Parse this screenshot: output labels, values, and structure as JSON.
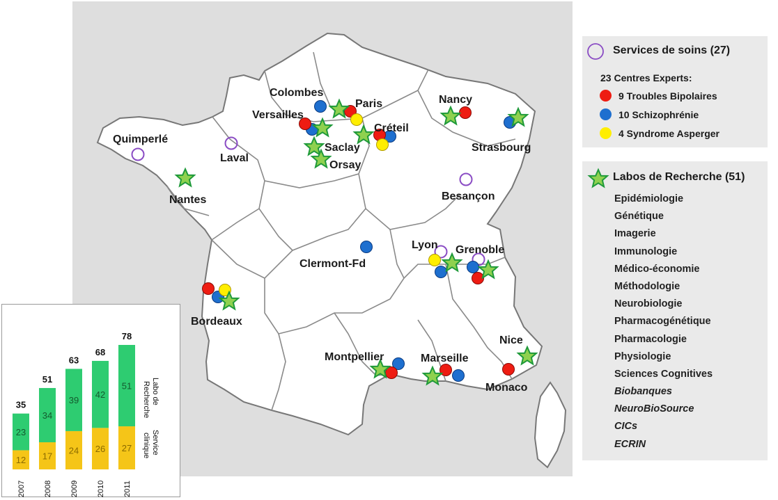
{
  "map": {
    "cities": [
      {
        "name": "Colombes"
      },
      {
        "name": "Paris"
      },
      {
        "name": "Versailles"
      },
      {
        "name": "Créteil"
      },
      {
        "name": "Saclay"
      },
      {
        "name": "Orsay"
      },
      {
        "name": "Nancy"
      },
      {
        "name": "Strasbourg"
      },
      {
        "name": "Quimperlé"
      },
      {
        "name": "Laval"
      },
      {
        "name": "Nantes"
      },
      {
        "name": "Besançon"
      },
      {
        "name": "Lyon"
      },
      {
        "name": "Grenoble"
      },
      {
        "name": "Clermont-Fd"
      },
      {
        "name": "Bordeaux"
      },
      {
        "name": "Montpellier"
      },
      {
        "name": "Marseille"
      },
      {
        "name": "Nice"
      },
      {
        "name": "Monaco"
      }
    ],
    "colors": {
      "bipolar": "#ee1c12",
      "schizo": "#1e6fcf",
      "asperger": "#ffee00",
      "service_outline": "#8a4cc4",
      "star_fill": "#8fd14f",
      "star_outline": "#1f9a3a",
      "land": "#ffffff",
      "sea": "#dedede"
    }
  },
  "legend_services": {
    "services_title": "Services de soins (27)",
    "centres_title": "23 Centres Experts:",
    "items": [
      {
        "label": "9 Troubles Bipolaires",
        "color": "#ee1c12"
      },
      {
        "label": "10  Schizophrénie",
        "color": "#1e6fcf"
      },
      {
        "label": "4 Syndrome Asperger",
        "color": "#ffee00"
      }
    ]
  },
  "legend_labos": {
    "title": "Labos de Recherche (51)",
    "items": [
      "Epidémiologie",
      "Génétique",
      "Imagerie",
      "Immunologie",
      "Médico-économie",
      "Méthodologie",
      "Neurobiologie",
      "Pharmacogénétique",
      "Pharmacologie",
      "Physiologie",
      "Sciences Cognitives"
    ],
    "italic_items": [
      "Biobanques",
      "NeuroBioSource",
      "CICs",
      "ECRIN"
    ]
  },
  "chart_data": {
    "type": "bar",
    "stacked": true,
    "categories": [
      "2007",
      "2008",
      "2009",
      "2010",
      "2011"
    ],
    "series": [
      {
        "name": "Service clinique",
        "values": [
          12,
          17,
          24,
          26,
          27
        ],
        "color": "#f5c518"
      },
      {
        "name": "Labo de Recherche",
        "values": [
          23,
          34,
          39,
          42,
          51
        ],
        "color": "#2ecc71"
      }
    ],
    "totals": [
      35,
      51,
      63,
      68,
      78
    ],
    "ylim": [
      0,
      78
    ]
  }
}
